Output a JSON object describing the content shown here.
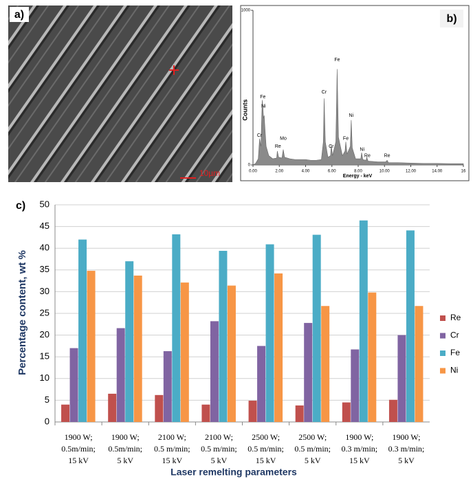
{
  "panel_a": {
    "label": "a)",
    "scale_bar": "10µm"
  },
  "chart_data": [
    {
      "type": "area",
      "label": "b)",
      "x_label": "Energy - keV",
      "y_label": "Counts",
      "color": "#8a8a8a",
      "x": [
        0.0,
        0.2,
        0.4,
        0.5,
        0.6,
        0.7,
        0.75,
        0.8,
        0.85,
        0.9,
        1.0,
        1.2,
        1.5,
        1.8,
        1.85,
        1.95,
        2.2,
        2.3,
        2.4,
        2.8,
        3.2,
        3.6,
        4.0,
        4.4,
        4.8,
        5.2,
        5.35,
        5.41,
        5.5,
        5.7,
        5.9,
        5.95,
        6.05,
        6.3,
        6.4,
        6.5,
        6.8,
        7.0,
        7.06,
        7.15,
        7.4,
        7.47,
        7.55,
        7.8,
        8.2,
        8.26,
        8.35,
        8.6,
        8.65,
        8.75,
        9.5,
        10.1,
        10.2,
        10.3,
        11,
        12,
        13,
        14,
        15,
        16
      ],
      "values": [
        0,
        10,
        40,
        170,
        120,
        420,
        380,
        300,
        320,
        250,
        120,
        60,
        40,
        45,
        90,
        50,
        45,
        100,
        50,
        40,
        35,
        35,
        35,
        30,
        30,
        35,
        150,
        430,
        150,
        50,
        60,
        130,
        60,
        150,
        620,
        180,
        60,
        90,
        150,
        70,
        120,
        290,
        110,
        40,
        40,
        80,
        35,
        30,
        50,
        25,
        20,
        20,
        30,
        15,
        15,
        12,
        10,
        10,
        8,
        8
      ],
      "xlim": [
        0,
        16
      ],
      "xticks": [
        {
          "value": 0,
          "label": "0.00"
        },
        {
          "value": 2,
          "label": "2.00"
        },
        {
          "value": 4,
          "label": "4.00"
        },
        {
          "value": 6,
          "label": "6.00"
        },
        {
          "value": 8,
          "label": "8.00"
        },
        {
          "value": 10,
          "label": "10.00"
        },
        {
          "value": 12,
          "label": "12.00"
        },
        {
          "value": 14,
          "label": "14.00"
        },
        16
      ],
      "ylim": [
        0,
        1000
      ],
      "yticks": [
        0,
        1000
      ],
      "annotations": [
        {
          "label": "Fe",
          "x": 0.75,
          "y": 440
        },
        {
          "label": "Ni",
          "x": 0.8,
          "y": 380
        },
        {
          "label": "Cr",
          "x": 0.5,
          "y": 190
        },
        {
          "label": "Re",
          "x": 1.9,
          "y": 120
        },
        {
          "label": "Mo",
          "x": 2.3,
          "y": 170
        },
        {
          "label": "Cr",
          "x": 5.41,
          "y": 470
        },
        {
          "label": "Fe",
          "x": 6.4,
          "y": 680
        },
        {
          "label": "Cr",
          "x": 5.95,
          "y": 120
        },
        {
          "label": "Fe",
          "x": 7.06,
          "y": 170
        },
        {
          "label": "Ni",
          "x": 7.47,
          "y": 320
        },
        {
          "label": "Ni",
          "x": 8.3,
          "y": 100
        },
        {
          "label": "Re",
          "x": 8.7,
          "y": 60
        },
        {
          "label": "Re",
          "x": 10.2,
          "y": 60
        }
      ]
    },
    {
      "type": "bar",
      "label": "c)",
      "y_label": "Percentage content, wt %",
      "x_label": "Laser remelting parameters",
      "categories": [
        [
          "1900 W;",
          "0.5m/min;",
          "15 kV"
        ],
        [
          "1900 W;",
          "0.5m/min;",
          "5 kV"
        ],
        [
          "2100 W;",
          "0.5 m/min;",
          "15 kV"
        ],
        [
          "2100 W;",
          "0.5 m/min;",
          "5 kV"
        ],
        [
          "2500 W;",
          "0.5 m/min;",
          "15 kV"
        ],
        [
          "2500 W;",
          "0.5 m/min;",
          "5 kV"
        ],
        [
          "1900 W;",
          "0.3 m/min;",
          "15 kV"
        ],
        [
          "1900 W;",
          "0.3 m/min;",
          "5 kV"
        ]
      ],
      "series": [
        {
          "name": "Re",
          "color": "#c0504d",
          "values": [
            4.0,
            6.5,
            6.2,
            4.0,
            4.9,
            3.8,
            4.5,
            5.1
          ]
        },
        {
          "name": "Cr",
          "color": "#8064a2",
          "values": [
            17.0,
            21.6,
            16.3,
            23.2,
            17.5,
            22.8,
            16.7,
            20.0
          ]
        },
        {
          "name": "Fe",
          "color": "#4bacc6",
          "values": [
            42.0,
            37.0,
            43.2,
            39.4,
            40.9,
            43.1,
            46.4,
            44.1
          ]
        },
        {
          "name": "Ni",
          "color": "#f79646",
          "values": [
            34.8,
            33.7,
            32.1,
            31.4,
            34.2,
            26.7,
            29.8,
            26.7
          ]
        }
      ],
      "ylim": [
        0,
        50
      ],
      "yticks": [
        0,
        5,
        10,
        15,
        20,
        25,
        30,
        35,
        40,
        45,
        50
      ],
      "grid": true,
      "legend": "right"
    }
  ]
}
